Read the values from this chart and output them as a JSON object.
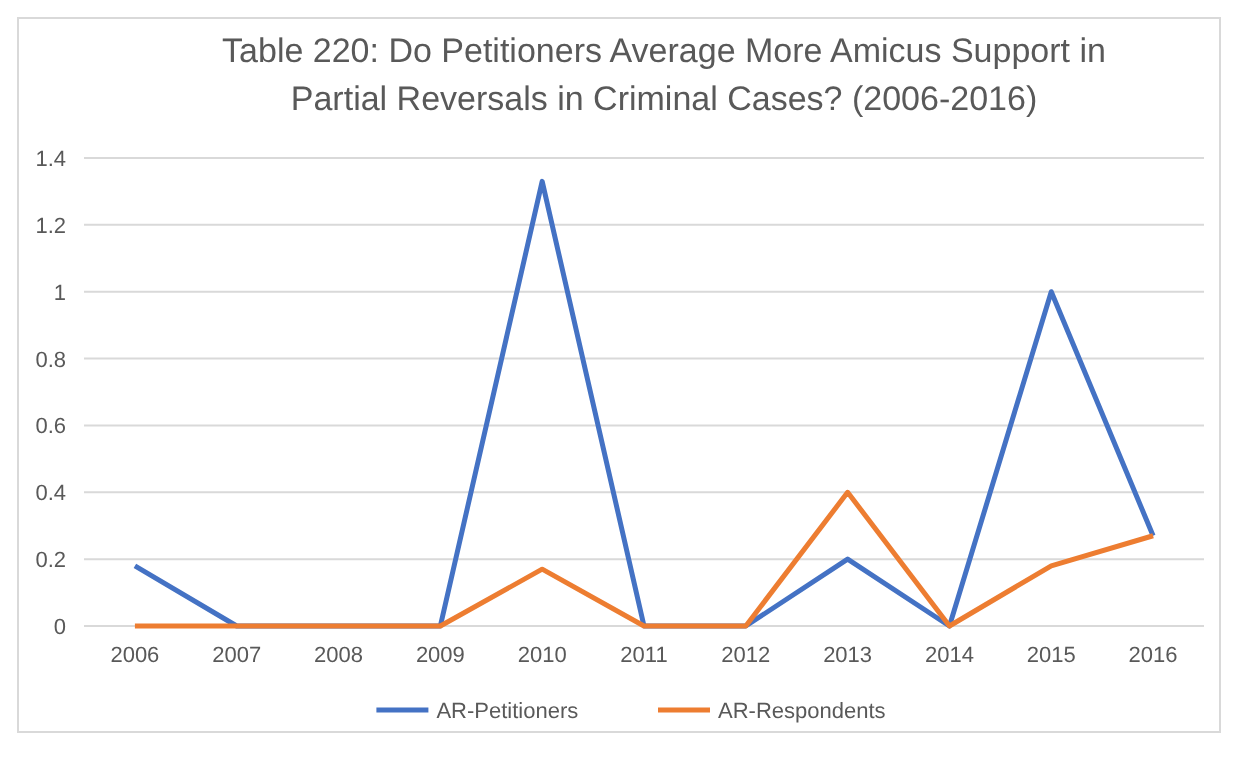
{
  "chart_data": {
    "type": "line",
    "title": "Table 220: Do Petitioners Average More Amicus Support in Partial Reversals in Criminal Cases? (2006-2016)",
    "categories": [
      "2006",
      "2007",
      "2008",
      "2009",
      "2010",
      "2011",
      "2012",
      "2013",
      "2014",
      "2015",
      "2016"
    ],
    "series": [
      {
        "name": "AR-Petitioners",
        "color": "#4472c4",
        "values": [
          0.18,
          0,
          0,
          0,
          1.33,
          0,
          0,
          0.2,
          0,
          1,
          0.27
        ]
      },
      {
        "name": "AR-Respondents",
        "color": "#ed7d31",
        "values": [
          0,
          0,
          0,
          0,
          0.17,
          0,
          0,
          0.4,
          0,
          0.18,
          0.27
        ]
      }
    ],
    "ylim": [
      0,
      1.4
    ],
    "yticks": [
      0,
      {
        "value": 0.2,
        "label": "0.2"
      },
      {
        "value": 0.4,
        "label": "0.4"
      },
      {
        "value": 0.6,
        "label": "0.6"
      },
      {
        "value": 0.8,
        "label": "0.8"
      },
      1,
      {
        "value": 1.2,
        "label": "1.2"
      },
      {
        "value": 1.4,
        "label": "1.4"
      }
    ],
    "grid": "y",
    "legend": "bottom",
    "marker": "none",
    "line_style": "solid"
  }
}
